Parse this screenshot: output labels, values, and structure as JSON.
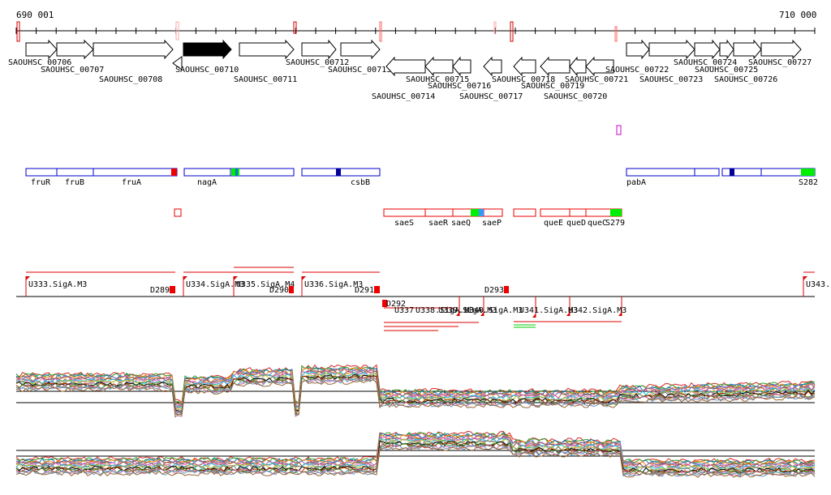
{
  "coords": {
    "start_label": "690 001",
    "end_label": "710 000"
  },
  "genes": [
    {
      "name": "SAOUHSC_00706",
      "dir": "+",
      "selected": false
    },
    {
      "name": "SAOUHSC_00707",
      "dir": "+",
      "selected": false
    },
    {
      "name": "SAOUHSC_00708",
      "dir": "+",
      "selected": false
    },
    {
      "name": "SAOUHSC_00710",
      "dir": "+",
      "selected": true
    },
    {
      "name": "SAOUHSC_00711",
      "dir": "+",
      "selected": false
    },
    {
      "name": "SAOUHSC_00712",
      "dir": "+",
      "selected": false
    },
    {
      "name": "SAOUHSC_00713",
      "dir": "+",
      "selected": false
    },
    {
      "name": "SAOUHSC_00714",
      "dir": "-",
      "selected": false
    },
    {
      "name": "SAOUHSC_00715",
      "dir": "-",
      "selected": false
    },
    {
      "name": "SAOUHSC_00716",
      "dir": "-",
      "selected": false
    },
    {
      "name": "SAOUHSC_00717",
      "dir": "-",
      "selected": false
    },
    {
      "name": "SAOUHSC_00718",
      "dir": "-",
      "selected": false
    },
    {
      "name": "SAOUHSC_00719",
      "dir": "-",
      "selected": false
    },
    {
      "name": "SAOUHSC_00720",
      "dir": "-",
      "selected": false
    },
    {
      "name": "SAOUHSC_00721",
      "dir": "-",
      "selected": false
    },
    {
      "name": "SAOUHSC_00722",
      "dir": "+",
      "selected": false
    },
    {
      "name": "SAOUHSC_00723",
      "dir": "+",
      "selected": false
    },
    {
      "name": "SAOUHSC_00724",
      "dir": "+",
      "selected": false
    },
    {
      "name": "SAOUHSC_00725",
      "dir": "+",
      "selected": false
    },
    {
      "name": "SAOUHSC_00726",
      "dir": "+",
      "selected": false
    },
    {
      "name": "SAOUHSC_00727",
      "dir": "+",
      "selected": false
    }
  ],
  "operon_labels_blue": [
    "fruR",
    "fruB",
    "fruA",
    "nagA",
    "csbB",
    "pabA",
    "S282"
  ],
  "operon_labels_red": [
    "saeS",
    "saeR",
    "saeQ",
    "saeP",
    "queE",
    "queD",
    "queC",
    "S279"
  ],
  "promoters_plus": [
    "U333.SigA.M3",
    "U334.SigA.M3",
    "U335.SigA.M4",
    "U336.SigA.M3",
    "U343."
  ],
  "terminators_plus": [
    "D289",
    "D290",
    "D291",
    "D293"
  ],
  "promoters_minus": [
    "U337",
    "U338.SigA.M3",
    "U339.SigA.M3",
    "U340.SigA.M3",
    "U341.SigA.M3",
    "U342.SigA.M3"
  ],
  "terminators_minus": [
    "D292"
  ],
  "colors": {
    "blue_box": "#0000cc",
    "red_box": "#ee0000",
    "green_mark": "#00ee00",
    "selected_gene": "#000000",
    "magenta_marker": "#cc00cc"
  }
}
